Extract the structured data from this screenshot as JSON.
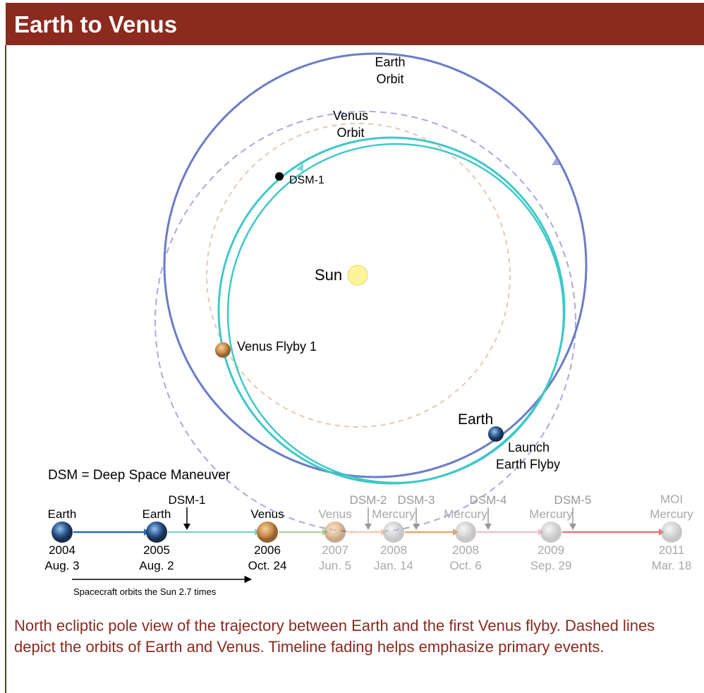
{
  "header": {
    "title": "Earth to Venus"
  },
  "orbit_diagram": {
    "earth_orbit": [
      "Earth",
      "Orbit"
    ],
    "venus_orbit": [
      "Venus",
      "Orbit"
    ],
    "dsm1": "DSM-1",
    "sun": "Sun",
    "venus_flyby": "Venus Flyby 1",
    "earth": "Earth",
    "launch": [
      "Launch",
      "Earth Flyby"
    ],
    "legend": "DSM = Deep Space Maneuver"
  },
  "timeline": {
    "events": [
      {
        "name": [
          "Earth"
        ],
        "year": "2004",
        "date": "Aug. 3"
      },
      {
        "name": [
          "Earth"
        ],
        "year": "2005",
        "date": "Aug. 2"
      },
      {
        "name": [
          "Venus"
        ],
        "year": "2006",
        "date": "Oct. 24"
      },
      {
        "name": [
          "Venus"
        ],
        "year": "2007",
        "date": "Jun. 5"
      },
      {
        "name": [
          "Mercury"
        ],
        "year": "2008",
        "date": "Jan. 14"
      },
      {
        "name": [
          "Mercury"
        ],
        "year": "2008",
        "date": "Oct. 6"
      },
      {
        "name": [
          "Mercury"
        ],
        "year": "2009",
        "date": "Sep. 29"
      },
      {
        "name": [
          "MOI",
          "Mercury"
        ],
        "year": "2011",
        "date": "Mar. 18"
      }
    ],
    "maneuvers": [
      "DSM-1",
      "DSM-2",
      "DSM-3",
      "DSM-4",
      "DSM-5"
    ],
    "note": "Spacecraft orbits the Sun 2.7 times"
  },
  "caption": "North ecliptic pole view of the trajectory between Earth and the first Venus flyby. Dashed lines depict the orbits of Earth and Venus. Timeline fading helps emphasize primary events."
}
